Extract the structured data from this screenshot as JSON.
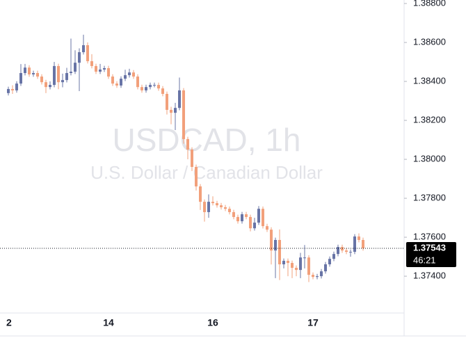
{
  "chart_data": {
    "type": "candlestick",
    "watermark": "USDCAD, 1h",
    "subtitle": "U.S. Dollar / Canadian Dollar",
    "categories": [
      "2",
      null,
      null,
      null,
      null,
      null,
      null,
      null,
      null,
      null,
      null,
      null,
      null,
      null,
      null,
      null,
      null,
      null,
      null,
      null,
      null,
      null,
      null,
      null,
      "14",
      null,
      null,
      null,
      null,
      null,
      null,
      null,
      null,
      null,
      null,
      null,
      null,
      null,
      null,
      null,
      null,
      null,
      null,
      null,
      null,
      null,
      null,
      null,
      null,
      "16",
      null,
      null,
      null,
      null,
      null,
      null,
      null,
      null,
      null,
      null,
      null,
      null,
      null,
      null,
      null,
      null,
      null,
      null,
      null,
      null,
      null,
      null,
      null,
      "17",
      null,
      null,
      null,
      null,
      null,
      null,
      null,
      null,
      null,
      null,
      null,
      null
    ],
    "open": [
      1.3834,
      1.38361,
      1.38354,
      1.38389,
      1.38443,
      1.38471,
      1.38436,
      1.38443,
      1.38425,
      1.38396,
      1.38371,
      1.38382,
      1.38479,
      1.38396,
      1.38407,
      1.38443,
      1.3845,
      1.38496,
      1.3855,
      1.38586,
      1.38504,
      1.38479,
      1.3845,
      1.38461,
      1.38468,
      1.38425,
      1.38389,
      1.38379,
      1.38414,
      1.38432,
      1.38446,
      1.38425,
      1.38371,
      1.38354,
      1.38371,
      1.38382,
      1.38382,
      1.38364,
      1.38336,
      1.38254,
      1.38239,
      1.38264,
      1.38354,
      1.38104,
      1.3805,
      1.37961,
      1.37861,
      1.37782,
      1.37729,
      1.37782,
      1.37775,
      1.37764,
      1.37754,
      1.37746,
      1.37729,
      1.37704,
      1.37682,
      1.37718,
      1.37704,
      1.37646,
      1.37675,
      1.37746,
      1.37657,
      1.37639,
      1.37532,
      1.37586,
      1.37461,
      1.37479,
      1.37468,
      1.37443,
      1.37432,
      1.37496,
      1.37496,
      1.37407,
      1.37396,
      1.374,
      1.37425,
      1.37461,
      1.37489,
      1.37514,
      1.3755,
      1.37532,
      1.37525,
      1.37525,
      1.37604,
      1.37586
    ],
    "high": [
      1.38373,
      1.3838,
      1.38401,
      1.38489,
      1.3849,
      1.38483,
      1.38455,
      1.38455,
      1.38437,
      1.38408,
      1.384,
      1.385,
      1.38491,
      1.3844,
      1.3847,
      1.3862,
      1.3856,
      1.3857,
      1.3864,
      1.386,
      1.3854,
      1.38491,
      1.3849,
      1.3848,
      1.3848,
      1.38437,
      1.38401,
      1.38426,
      1.3846,
      1.38465,
      1.38458,
      1.38437,
      1.38383,
      1.38383,
      1.38394,
      1.38394,
      1.38394,
      1.38376,
      1.38348,
      1.3827,
      1.3829,
      1.3842,
      1.38366,
      1.38116,
      1.38062,
      1.37973,
      1.37873,
      1.37794,
      1.3782,
      1.3781,
      1.37787,
      1.37776,
      1.37766,
      1.37758,
      1.37741,
      1.37716,
      1.3773,
      1.3773,
      1.37716,
      1.377,
      1.3776,
      1.37758,
      1.37669,
      1.37651,
      1.37598,
      1.3764,
      1.37491,
      1.37491,
      1.3748,
      1.37455,
      1.3752,
      1.3756,
      1.37508,
      1.37419,
      1.37412,
      1.37437,
      1.37473,
      1.37501,
      1.37526,
      1.37562,
      1.37562,
      1.37544,
      1.37537,
      1.37616,
      1.3762,
      1.37598
    ],
    "low": [
      1.38328,
      1.38336,
      1.38342,
      1.38377,
      1.38431,
      1.38424,
      1.38424,
      1.38413,
      1.38384,
      1.3834,
      1.38359,
      1.3837,
      1.3836,
      1.3837,
      1.38395,
      1.38431,
      1.38438,
      1.3835,
      1.38538,
      1.38492,
      1.38467,
      1.38438,
      1.38438,
      1.38449,
      1.38413,
      1.38377,
      1.38367,
      1.38367,
      1.38402,
      1.3842,
      1.38413,
      1.38359,
      1.38342,
      1.38342,
      1.38359,
      1.3837,
      1.38352,
      1.38324,
      1.3823,
      1.3818,
      1.3815,
      1.38252,
      1.3808,
      1.38,
      1.3794,
      1.3784,
      1.3774,
      1.3768,
      1.377,
      1.37763,
      1.37752,
      1.37742,
      1.37734,
      1.37717,
      1.37692,
      1.3767,
      1.3767,
      1.37692,
      1.3763,
      1.37634,
      1.37663,
      1.37645,
      1.37627,
      1.3746,
      1.3739,
      1.3738,
      1.3744,
      1.374,
      1.3739,
      1.374,
      1.3739,
      1.3744,
      1.3737,
      1.37384,
      1.37384,
      1.37388,
      1.37413,
      1.37449,
      1.37477,
      1.37502,
      1.3752,
      1.37513,
      1.375,
      1.37513,
      1.37574,
      1.37531
    ],
    "close": [
      1.38361,
      1.38354,
      1.38389,
      1.38443,
      1.38471,
      1.38436,
      1.38443,
      1.38425,
      1.38396,
      1.38371,
      1.38382,
      1.38479,
      1.38396,
      1.38407,
      1.38443,
      1.3845,
      1.38496,
      1.3855,
      1.38586,
      1.38504,
      1.38479,
      1.3845,
      1.38461,
      1.38468,
      1.38425,
      1.38389,
      1.38379,
      1.38414,
      1.38432,
      1.38446,
      1.38425,
      1.38371,
      1.38354,
      1.38371,
      1.38382,
      1.38382,
      1.38364,
      1.38336,
      1.38254,
      1.38239,
      1.38264,
      1.38354,
      1.38104,
      1.3805,
      1.37961,
      1.37861,
      1.37782,
      1.37729,
      1.37782,
      1.37775,
      1.37764,
      1.37754,
      1.37746,
      1.37729,
      1.37704,
      1.37682,
      1.37718,
      1.37704,
      1.37646,
      1.37675,
      1.37746,
      1.37657,
      1.37639,
      1.37532,
      1.37586,
      1.37461,
      1.37479,
      1.37468,
      1.37443,
      1.37432,
      1.37496,
      1.37496,
      1.37407,
      1.37396,
      1.374,
      1.37425,
      1.37461,
      1.37489,
      1.37514,
      1.3755,
      1.37532,
      1.37525,
      1.37525,
      1.37604,
      1.37586,
      1.37543
    ],
    "up_color": "#6874a6",
    "down_color": "#f2a07b",
    "ylim": [
      1.37211,
      1.38818
    ],
    "yticks": [
      {
        "value": 1.388,
        "label": "1.38800"
      },
      {
        "value": 1.386,
        "label": "1.38600"
      },
      {
        "value": 1.384,
        "label": "1.38400"
      },
      {
        "value": 1.382,
        "label": "1.38200"
      },
      {
        "value": 1.38,
        "label": "1.38000"
      },
      {
        "value": 1.378,
        "label": "1.37800"
      },
      {
        "value": 1.376,
        "label": "1.37600"
      },
      {
        "value": 1.374,
        "label": "1.37400"
      }
    ],
    "last_price": {
      "value": 1.37543,
      "label": "1.37543"
    },
    "countdown": "46:21"
  }
}
